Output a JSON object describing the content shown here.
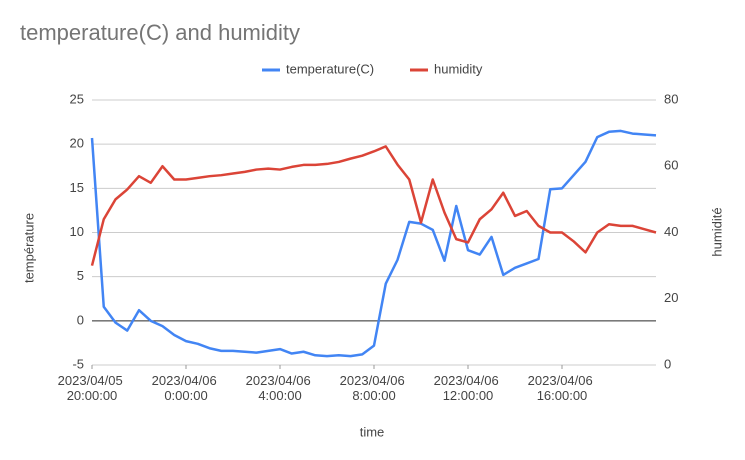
{
  "chart_data": {
    "type": "line",
    "title": "temperature(C) and humidity",
    "x_label": "time",
    "y_label": "température",
    "y2_label": "humidité",
    "x": [
      "2023/04/05 20:00:00",
      "2023/04/05 20:30:00",
      "2023/04/05 21:00:00",
      "2023/04/05 21:30:00",
      "2023/04/05 22:00:00",
      "2023/04/05 22:30:00",
      "2023/04/05 23:00:00",
      "2023/04/05 23:30:00",
      "2023/04/06 00:00:00",
      "2023/04/06 00:30:00",
      "2023/04/06 01:00:00",
      "2023/04/06 01:30:00",
      "2023/04/06 02:00:00",
      "2023/04/06 02:30:00",
      "2023/04/06 03:00:00",
      "2023/04/06 03:30:00",
      "2023/04/06 04:00:00",
      "2023/04/06 04:30:00",
      "2023/04/06 05:00:00",
      "2023/04/06 05:30:00",
      "2023/04/06 06:00:00",
      "2023/04/06 06:30:00",
      "2023/04/06 07:00:00",
      "2023/04/06 07:30:00",
      "2023/04/06 08:00:00",
      "2023/04/06 08:30:00",
      "2023/04/06 09:00:00",
      "2023/04/06 09:30:00",
      "2023/04/06 10:00:00",
      "2023/04/06 10:30:00",
      "2023/04/06 11:00:00",
      "2023/04/06 11:30:00",
      "2023/04/06 12:00:00",
      "2023/04/06 12:30:00",
      "2023/04/06 13:00:00",
      "2023/04/06 13:30:00",
      "2023/04/06 14:00:00",
      "2023/04/06 14:30:00",
      "2023/04/06 15:00:00",
      "2023/04/06 15:30:00",
      "2023/04/06 16:00:00",
      "2023/04/06 16:30:00",
      "2023/04/06 17:00:00",
      "2023/04/06 17:30:00",
      "2023/04/06 18:00:00",
      "2023/04/06 18:30:00",
      "2023/04/06 19:00:00",
      "2023/04/06 19:30:00",
      "2023/04/06 20:00:00"
    ],
    "series": [
      {
        "name": "temperature(C)",
        "color": "#4285f4",
        "values": [
          20.7,
          1.6,
          -0.2,
          -1.1,
          1.2,
          0,
          -0.6,
          -1.6,
          -2.3,
          -2.6,
          -3.1,
          -3.4,
          -3.4,
          -3.5,
          -3.6,
          -3.4,
          -3.2,
          -3.7,
          -3.5,
          -3.9,
          -4.0,
          -3.9,
          -4.0,
          -3.8,
          -2.8,
          4.2,
          6.9,
          11.2,
          11,
          10.3,
          6.8,
          13,
          8,
          7.5,
          9.5,
          5.2,
          6,
          6.5,
          7,
          14.9,
          15,
          16.5,
          18,
          20.8,
          21.4,
          21.5,
          21.2,
          21.1,
          21
        ]
      },
      {
        "name": "humidity",
        "color": "#db4437",
        "axis": "y2",
        "values": [
          30,
          44,
          50,
          53,
          57,
          55,
          60,
          56,
          56,
          56.5,
          57,
          57.3,
          57.8,
          58.3,
          59,
          59.3,
          59,
          59.8,
          60.4,
          60.4,
          60.7,
          61.3,
          62.3,
          63.2,
          64.5,
          66,
          60.5,
          56,
          43,
          56,
          46,
          38,
          37,
          44,
          47,
          52,
          45,
          46.5,
          42,
          40,
          40,
          37.3,
          34,
          40,
          42.5,
          42,
          42,
          41,
          40
        ]
      }
    ],
    "xlim": [
      "2023/04/05 20:00:00",
      "2023/04/06 20:00:00"
    ],
    "xticks": [
      "2023/04/05 20:00:00",
      "2023/04/06 0:00:00",
      "2023/04/06 4:00:00",
      "2023/04/06 8:00:00",
      "2023/04/06 12:00:00",
      "2023/04/06 16:00:00"
    ],
    "ylim": [
      -5,
      25
    ],
    "yticks": [
      -5,
      0,
      5,
      10,
      15,
      20,
      25
    ],
    "y2lim": [
      0,
      80
    ],
    "y2ticks": [
      0,
      20,
      40,
      60,
      80
    ],
    "grid": true,
    "legend": "top"
  }
}
